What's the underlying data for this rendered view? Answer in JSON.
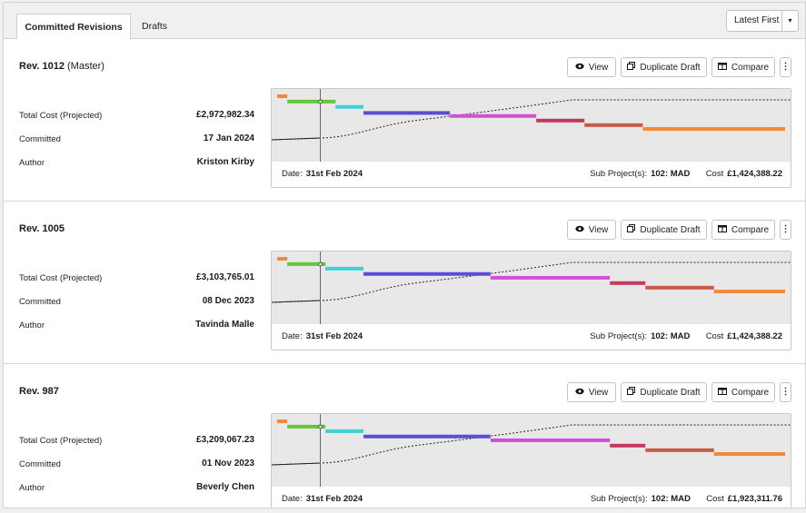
{
  "tabs": [
    {
      "label": "Committed Revisions",
      "active": true
    },
    {
      "label": "Drafts",
      "active": false
    }
  ],
  "sort": {
    "label": "Latest First",
    "arrow": "▾"
  },
  "buttons": {
    "view": "View",
    "duplicate": "Duplicate Draft",
    "compare": "Compare",
    "more": "⋮"
  },
  "field_labels": {
    "total_cost": "Total Cost (Projected)",
    "committed": "Committed",
    "author": "Author"
  },
  "footer_labels": {
    "date": "Date:",
    "subproject": "Sub Project(s):",
    "cost": "Cost"
  },
  "colors": {
    "plot_bg": "#e8e8e8",
    "segments": [
      "#f28a3a",
      "#5fc83a",
      "#3ed0d6",
      "#5a4ed6",
      "#d24fd6",
      "#c4385e",
      "#c85a48",
      "#f28a3a"
    ]
  },
  "revisions": [
    {
      "title": "Rev. 1012",
      "tag": "(Master)",
      "total_cost": "£2,972,982.34",
      "committed": "17 Jan 2024",
      "author": "Kriston Kirby",
      "date": "31st Feb 2024",
      "subproject": "102: MAD",
      "cost": "£1,424,388.22",
      "timeline": {
        "segments": [
          {
            "start": 0.0,
            "end": 0.02,
            "level": 0.12
          },
          {
            "start": 0.02,
            "end": 0.115,
            "level": 0.19
          },
          {
            "start": 0.115,
            "end": 0.17,
            "level": 0.26
          },
          {
            "start": 0.17,
            "end": 0.34,
            "level": 0.34
          },
          {
            "start": 0.34,
            "end": 0.51,
            "level": 0.38
          },
          {
            "start": 0.51,
            "end": 0.605,
            "level": 0.44
          },
          {
            "start": 0.605,
            "end": 0.72,
            "level": 0.5
          },
          {
            "start": 0.72,
            "end": 1.0,
            "level": 0.55
          }
        ],
        "marker": 0.085
      }
    },
    {
      "title": "Rev. 1005",
      "tag": "",
      "total_cost": "£3,103,765.01",
      "committed": "08 Dec 2023",
      "author": "Tavinda Malle",
      "date": "31st Feb 2024",
      "subproject": "102: MAD",
      "cost": "£1,424,388.22",
      "timeline": {
        "segments": [
          {
            "start": 0.0,
            "end": 0.02,
            "level": 0.12
          },
          {
            "start": 0.02,
            "end": 0.095,
            "level": 0.19
          },
          {
            "start": 0.095,
            "end": 0.17,
            "level": 0.25
          },
          {
            "start": 0.17,
            "end": 0.42,
            "level": 0.32
          },
          {
            "start": 0.42,
            "end": 0.655,
            "level": 0.37
          },
          {
            "start": 0.655,
            "end": 0.725,
            "level": 0.44
          },
          {
            "start": 0.725,
            "end": 0.86,
            "level": 0.5
          },
          {
            "start": 0.86,
            "end": 1.0,
            "level": 0.55
          }
        ],
        "marker": 0.085
      }
    },
    {
      "title": "Rev. 987",
      "tag": "",
      "total_cost": "£3,209,067.23",
      "committed": "01 Nov 2023",
      "author": "Beverly Chen",
      "date": "31st Feb 2024",
      "subproject": "102: MAD",
      "cost": "£1,923,311.76",
      "timeline": {
        "segments": [
          {
            "start": 0.0,
            "end": 0.02,
            "level": 0.12
          },
          {
            "start": 0.02,
            "end": 0.095,
            "level": 0.19
          },
          {
            "start": 0.095,
            "end": 0.17,
            "level": 0.25
          },
          {
            "start": 0.17,
            "end": 0.42,
            "level": 0.32
          },
          {
            "start": 0.42,
            "end": 0.655,
            "level": 0.37
          },
          {
            "start": 0.655,
            "end": 0.725,
            "level": 0.44
          },
          {
            "start": 0.725,
            "end": 0.86,
            "level": 0.5
          },
          {
            "start": 0.86,
            "end": 1.0,
            "level": 0.55
          }
        ],
        "marker": 0.085
      }
    }
  ]
}
